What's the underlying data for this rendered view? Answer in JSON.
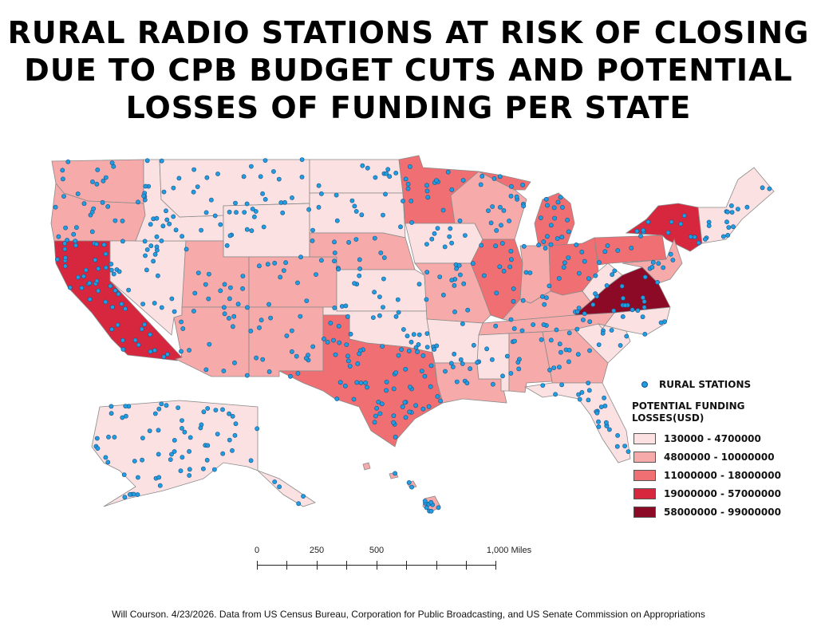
{
  "title_lines": [
    "RURAL RADIO STATIONS AT RISK OF CLOSING",
    "DUE TO CPB BUDGET CUTS AND POTENTIAL",
    "LOSSES OF FUNDING PER STATE"
  ],
  "legend": {
    "stations_label": "RURAL STATIONS",
    "heading_line1": "POTENTIAL FUNDING",
    "heading_line2": "LOSSES(USD)",
    "classes": [
      {
        "label": "130000 - 4700000",
        "color": "#fbe1e1"
      },
      {
        "label": "4800000 - 10000000",
        "color": "#f6aaaa"
      },
      {
        "label": "11000000 - 18000000",
        "color": "#f06f72"
      },
      {
        "label": "19000000 - 57000000",
        "color": "#d6273e"
      },
      {
        "label": "58000000 - 99000000",
        "color": "#8c0a25"
      }
    ]
  },
  "station_color": "#1f9ee0",
  "scale_bar": {
    "labels": [
      "0",
      "250",
      "500",
      "1,000 Miles"
    ]
  },
  "credit": "Will Courson. 4/23/2026. Data from US Census Bureau, Corporation for Public Broadcasting, and US Senate Commission on Appropriations"
}
